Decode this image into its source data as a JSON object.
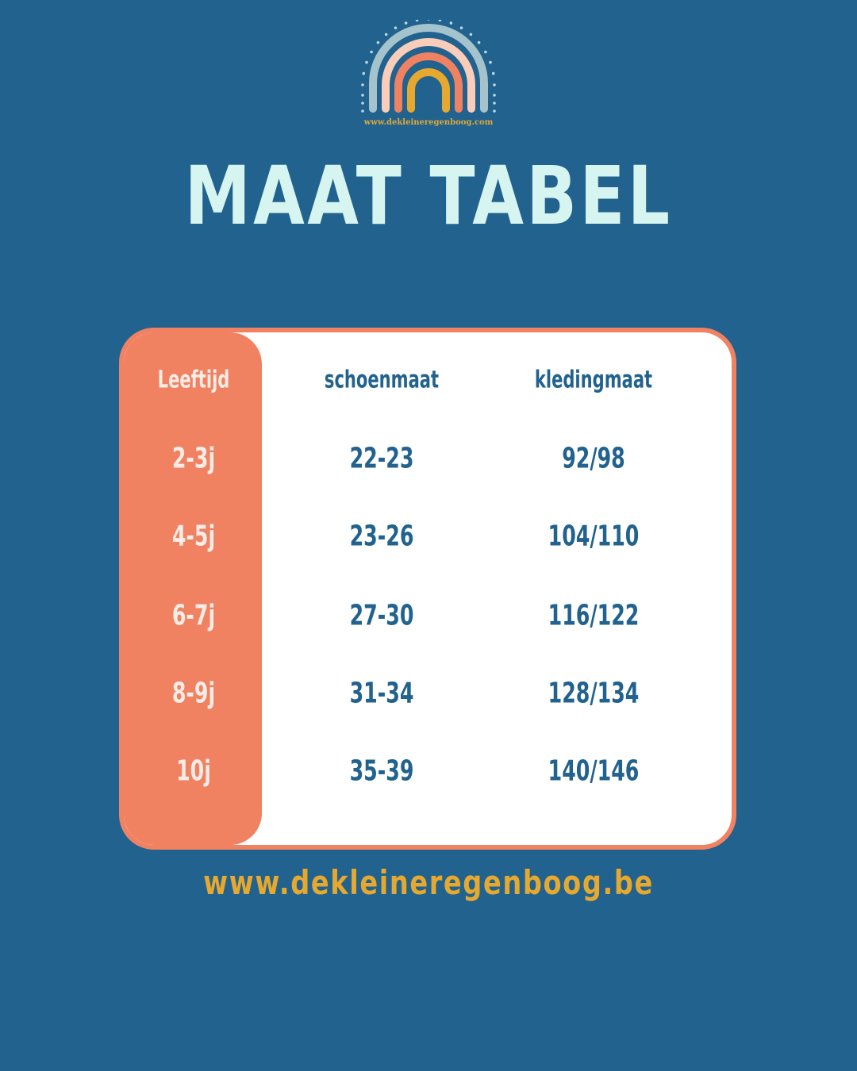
{
  "logo": {
    "text": "www.dekleineregenboog.com",
    "colors": [
      "#a5c3cc",
      "#f9cdb9",
      "#f08262",
      "#e6a82e"
    ]
  },
  "title": "MAAT TABEL",
  "table": {
    "headers": [
      "Leeftijd",
      "schoenmaat",
      "kledingmaat"
    ],
    "rows": [
      [
        "2-3j",
        "22-23",
        "92/98"
      ],
      [
        "4-5j",
        "23-26",
        "104/110"
      ],
      [
        "6-7j",
        "27-30",
        "116/122"
      ],
      [
        "8-9j",
        "31-34",
        "128/134"
      ],
      [
        "10j",
        "35-39",
        "140/146"
      ]
    ]
  },
  "footer_url": "www.dekleineregenboog.be",
  "colors": {
    "background": "#21628e",
    "accent": "#f08262",
    "title": "#d6f4f0",
    "url": "#e6a82e"
  }
}
